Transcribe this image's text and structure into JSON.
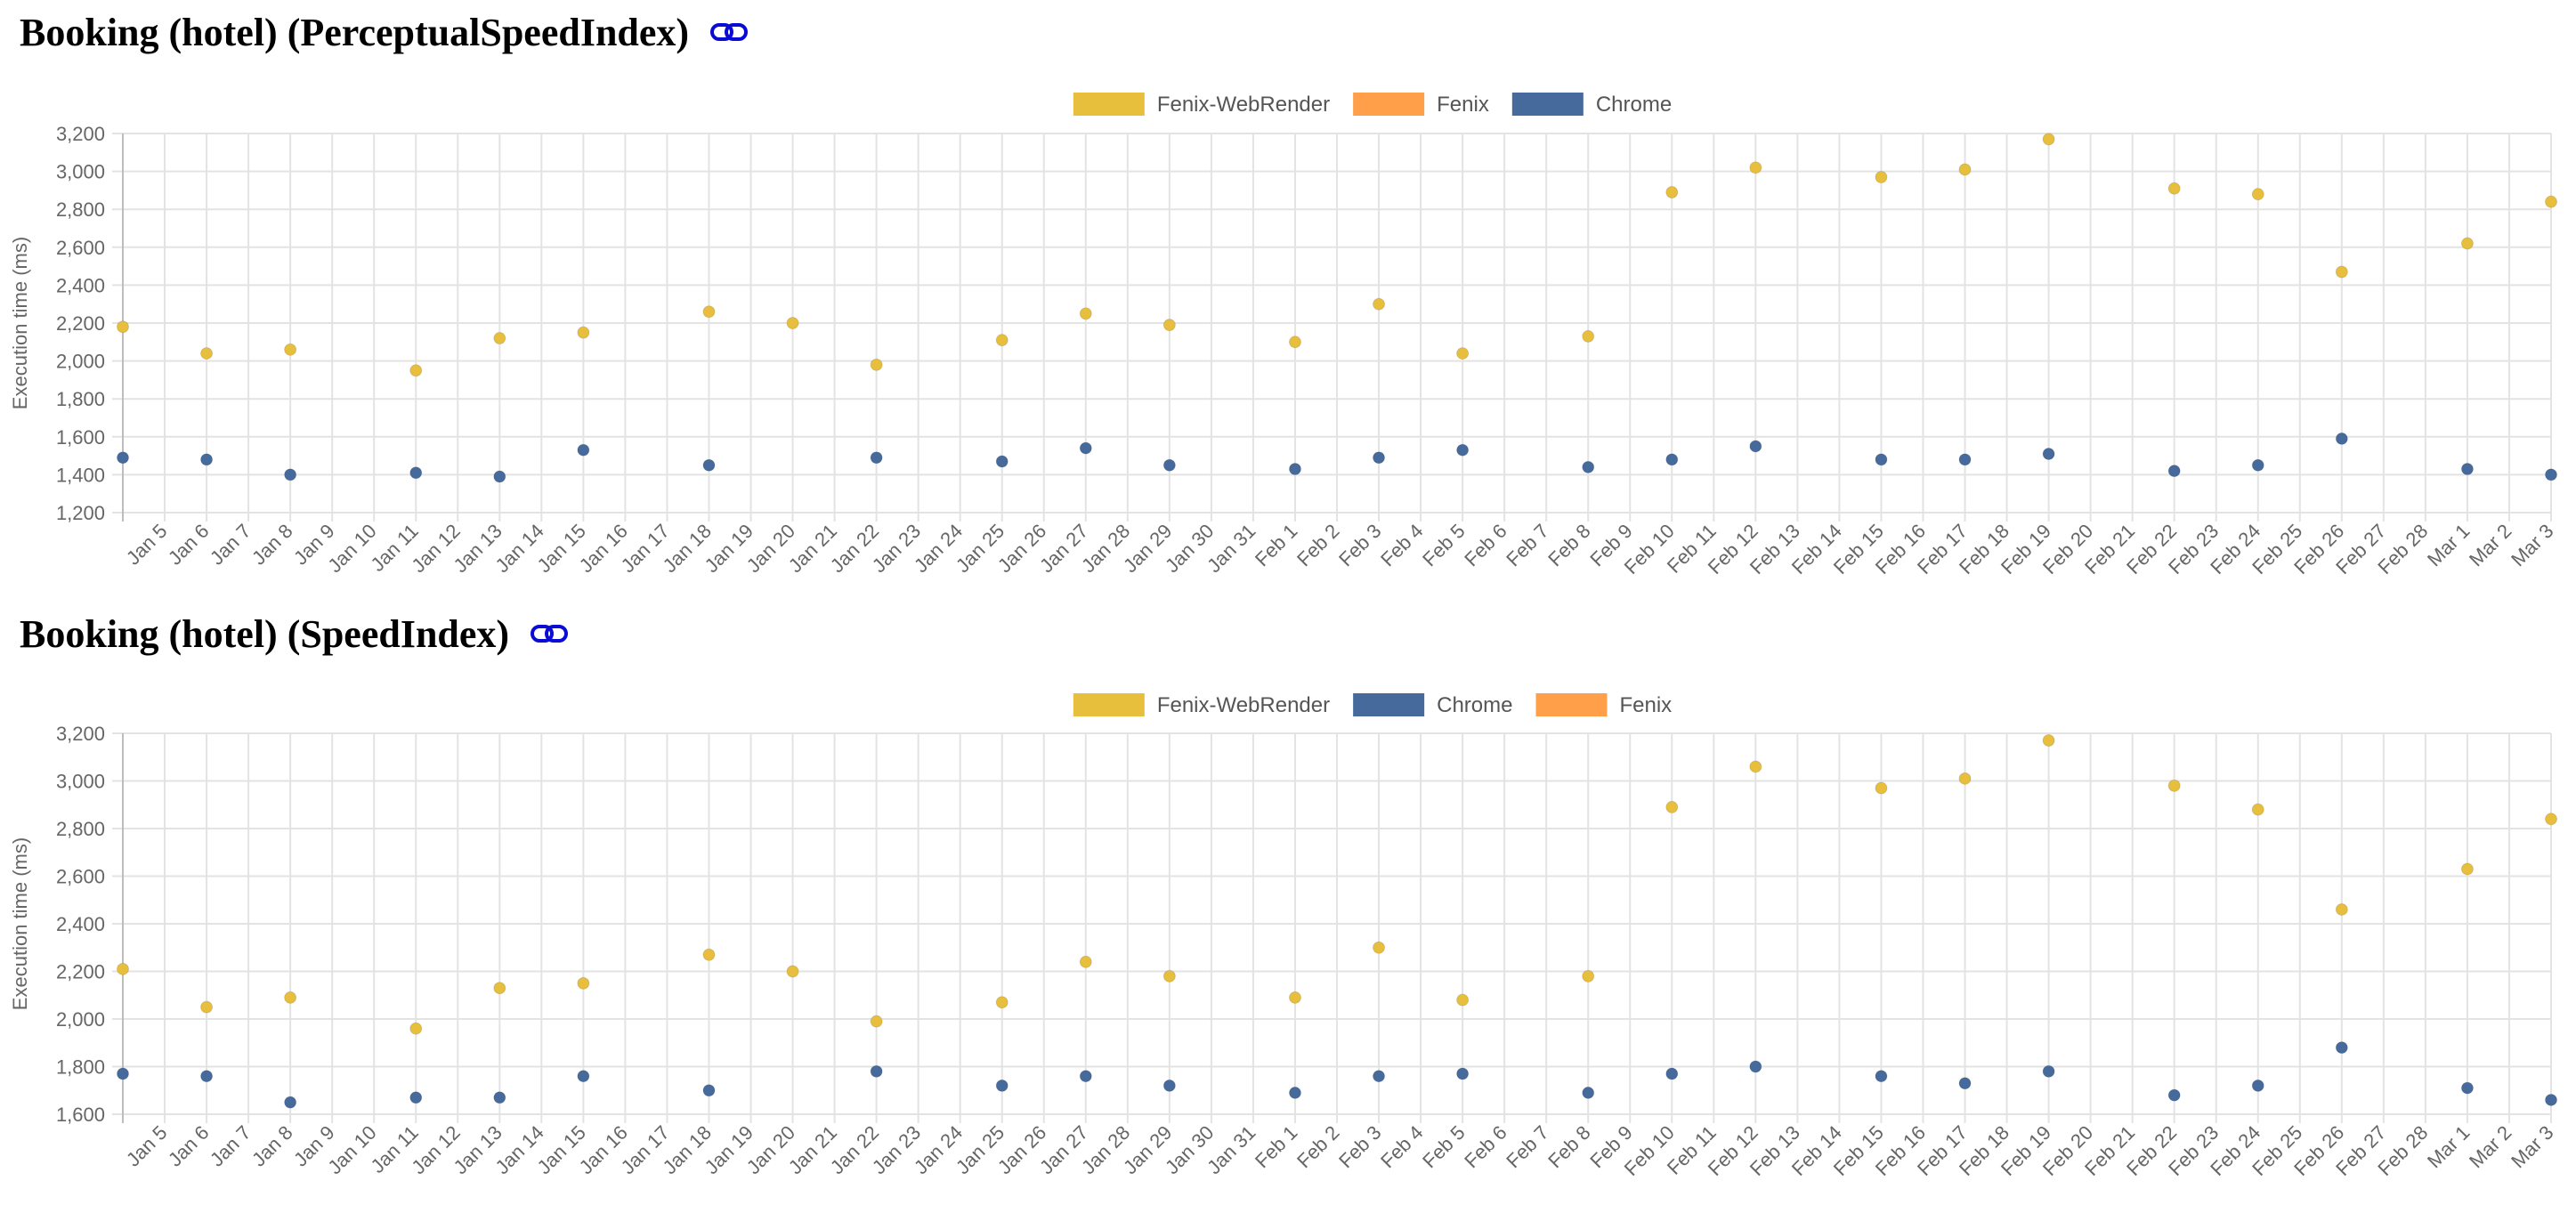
{
  "charts": [
    {
      "title": "Booking (hotel) (PerceptualSpeedIndex)",
      "link_icon": "link-icon"
    },
    {
      "title": "Booking (hotel) (SpeedIndex)",
      "link_icon": "link-icon"
    }
  ],
  "chart_data": [
    {
      "type": "scatter",
      "title": "Booking (hotel) (PerceptualSpeedIndex)",
      "ylabel": "Execution time (ms)",
      "xlabel": "",
      "ylim": [
        1200,
        3200
      ],
      "yticks": [
        1200,
        1400,
        1600,
        1800,
        2000,
        2200,
        2400,
        2600,
        2800,
        3000,
        3200
      ],
      "xlim": [
        "2023-01-04",
        "2023-03-03"
      ],
      "xtick_labels": [
        "Jan 5",
        "Jan 6",
        "Jan 7",
        "Jan 8",
        "Jan 9",
        "Jan 10",
        "Jan 11",
        "Jan 12",
        "Jan 13",
        "Jan 14",
        "Jan 15",
        "Jan 16",
        "Jan 17",
        "Jan 18",
        "Jan 19",
        "Jan 20",
        "Jan 21",
        "Jan 22",
        "Jan 23",
        "Jan 24",
        "Jan 25",
        "Jan 26",
        "Jan 27",
        "Jan 28",
        "Jan 29",
        "Jan 30",
        "Jan 31",
        "Feb 1",
        "Feb 2",
        "Feb 3",
        "Feb 4",
        "Feb 5",
        "Feb 6",
        "Feb 7",
        "Feb 8",
        "Feb 9",
        "Feb 10",
        "Feb 11",
        "Feb 12",
        "Feb 13",
        "Feb 14",
        "Feb 15",
        "Feb 16",
        "Feb 17",
        "Feb 18",
        "Feb 19",
        "Feb 20",
        "Feb 21",
        "Feb 22",
        "Feb 23",
        "Feb 24",
        "Feb 25",
        "Feb 26",
        "Feb 27",
        "Feb 28",
        "Mar 1",
        "Mar 2",
        "Mar 3"
      ],
      "legend_position": "top-center",
      "grid": true,
      "series": [
        {
          "name": "Fenix-WebRender",
          "color": "#e8be3d",
          "points": [
            {
              "x": "2023-01-04",
              "y": 2180
            },
            {
              "x": "2023-01-06",
              "y": 2040
            },
            {
              "x": "2023-01-08",
              "y": 2060
            },
            {
              "x": "2023-01-11",
              "y": 1950
            },
            {
              "x": "2023-01-13",
              "y": 2120
            },
            {
              "x": "2023-01-15",
              "y": 2150
            },
            {
              "x": "2023-01-18",
              "y": 2260
            },
            {
              "x": "2023-01-20",
              "y": 2200
            },
            {
              "x": "2023-01-22",
              "y": 1980
            },
            {
              "x": "2023-01-25",
              "y": 2110
            },
            {
              "x": "2023-01-27",
              "y": 2250
            },
            {
              "x": "2023-01-29",
              "y": 2190
            },
            {
              "x": "2023-02-01",
              "y": 2100
            },
            {
              "x": "2023-02-03",
              "y": 2300
            },
            {
              "x": "2023-02-05",
              "y": 2040
            },
            {
              "x": "2023-02-08",
              "y": 2130
            },
            {
              "x": "2023-02-10",
              "y": 2890
            },
            {
              "x": "2023-02-12",
              "y": 3020
            },
            {
              "x": "2023-02-15",
              "y": 2970
            },
            {
              "x": "2023-02-17",
              "y": 3010
            },
            {
              "x": "2023-02-19",
              "y": 3170
            },
            {
              "x": "2023-02-22",
              "y": 2910
            },
            {
              "x": "2023-02-24",
              "y": 2880
            },
            {
              "x": "2023-02-26",
              "y": 2470
            },
            {
              "x": "2023-03-01",
              "y": 2620
            },
            {
              "x": "2023-03-03",
              "y": 2840
            }
          ]
        },
        {
          "name": "Fenix",
          "color": "#ff9f4a",
          "points": []
        },
        {
          "name": "Chrome",
          "color": "#456a9b",
          "points": [
            {
              "x": "2023-01-04",
              "y": 1490
            },
            {
              "x": "2023-01-06",
              "y": 1480
            },
            {
              "x": "2023-01-08",
              "y": 1400
            },
            {
              "x": "2023-01-11",
              "y": 1410
            },
            {
              "x": "2023-01-13",
              "y": 1390
            },
            {
              "x": "2023-01-15",
              "y": 1530
            },
            {
              "x": "2023-01-18",
              "y": 1450
            },
            {
              "x": "2023-01-22",
              "y": 1490
            },
            {
              "x": "2023-01-25",
              "y": 1470
            },
            {
              "x": "2023-01-27",
              "y": 1540
            },
            {
              "x": "2023-01-29",
              "y": 1450
            },
            {
              "x": "2023-02-01",
              "y": 1430
            },
            {
              "x": "2023-02-03",
              "y": 1490
            },
            {
              "x": "2023-02-05",
              "y": 1530
            },
            {
              "x": "2023-02-08",
              "y": 1440
            },
            {
              "x": "2023-02-10",
              "y": 1480
            },
            {
              "x": "2023-02-12",
              "y": 1550
            },
            {
              "x": "2023-02-15",
              "y": 1480
            },
            {
              "x": "2023-02-17",
              "y": 1480
            },
            {
              "x": "2023-02-19",
              "y": 1510
            },
            {
              "x": "2023-02-22",
              "y": 1420
            },
            {
              "x": "2023-02-24",
              "y": 1450
            },
            {
              "x": "2023-02-26",
              "y": 1590
            },
            {
              "x": "2023-03-01",
              "y": 1430
            },
            {
              "x": "2023-03-03",
              "y": 1400
            }
          ]
        }
      ]
    },
    {
      "type": "scatter",
      "title": "Booking (hotel) (SpeedIndex)",
      "ylabel": "Execution time (ms)",
      "xlabel": "",
      "ylim": [
        1600,
        3200
      ],
      "yticks": [
        1600,
        1800,
        2000,
        2200,
        2400,
        2600,
        2800,
        3000,
        3200
      ],
      "xlim": [
        "2023-01-04",
        "2023-03-03"
      ],
      "xtick_labels": [
        "Jan 5",
        "Jan 6",
        "Jan 7",
        "Jan 8",
        "Jan 9",
        "Jan 10",
        "Jan 11",
        "Jan 12",
        "Jan 13",
        "Jan 14",
        "Jan 15",
        "Jan 16",
        "Jan 17",
        "Jan 18",
        "Jan 19",
        "Jan 20",
        "Jan 21",
        "Jan 22",
        "Jan 23",
        "Jan 24",
        "Jan 25",
        "Jan 26",
        "Jan 27",
        "Jan 28",
        "Jan 29",
        "Jan 30",
        "Jan 31",
        "Feb 1",
        "Feb 2",
        "Feb 3",
        "Feb 4",
        "Feb 5",
        "Feb 6",
        "Feb 7",
        "Feb 8",
        "Feb 9",
        "Feb 10",
        "Feb 11",
        "Feb 12",
        "Feb 13",
        "Feb 14",
        "Feb 15",
        "Feb 16",
        "Feb 17",
        "Feb 18",
        "Feb 19",
        "Feb 20",
        "Feb 21",
        "Feb 22",
        "Feb 23",
        "Feb 24",
        "Feb 25",
        "Feb 26",
        "Feb 27",
        "Feb 28",
        "Mar 1",
        "Mar 2",
        "Mar 3"
      ],
      "legend_position": "top-center",
      "grid": true,
      "series": [
        {
          "name": "Fenix-WebRender",
          "color": "#e8be3d",
          "points": [
            {
              "x": "2023-01-04",
              "y": 2210
            },
            {
              "x": "2023-01-06",
              "y": 2050
            },
            {
              "x": "2023-01-08",
              "y": 2090
            },
            {
              "x": "2023-01-11",
              "y": 1960
            },
            {
              "x": "2023-01-13",
              "y": 2130
            },
            {
              "x": "2023-01-15",
              "y": 2150
            },
            {
              "x": "2023-01-18",
              "y": 2270
            },
            {
              "x": "2023-01-20",
              "y": 2200
            },
            {
              "x": "2023-01-22",
              "y": 1990
            },
            {
              "x": "2023-01-25",
              "y": 2070
            },
            {
              "x": "2023-01-27",
              "y": 2240
            },
            {
              "x": "2023-01-29",
              "y": 2180
            },
            {
              "x": "2023-02-01",
              "y": 2090
            },
            {
              "x": "2023-02-03",
              "y": 2300
            },
            {
              "x": "2023-02-05",
              "y": 2080
            },
            {
              "x": "2023-02-08",
              "y": 2180
            },
            {
              "x": "2023-02-10",
              "y": 2890
            },
            {
              "x": "2023-02-12",
              "y": 3060
            },
            {
              "x": "2023-02-15",
              "y": 2970
            },
            {
              "x": "2023-02-17",
              "y": 3010
            },
            {
              "x": "2023-02-19",
              "y": 3170
            },
            {
              "x": "2023-02-22",
              "y": 2980
            },
            {
              "x": "2023-02-24",
              "y": 2880
            },
            {
              "x": "2023-02-26",
              "y": 2460
            },
            {
              "x": "2023-03-01",
              "y": 2630
            },
            {
              "x": "2023-03-03",
              "y": 2840
            }
          ]
        },
        {
          "name": "Chrome",
          "color": "#456a9b",
          "points": [
            {
              "x": "2023-01-04",
              "y": 1770
            },
            {
              "x": "2023-01-06",
              "y": 1760
            },
            {
              "x": "2023-01-08",
              "y": 1650
            },
            {
              "x": "2023-01-11",
              "y": 1670
            },
            {
              "x": "2023-01-13",
              "y": 1670
            },
            {
              "x": "2023-01-15",
              "y": 1760
            },
            {
              "x": "2023-01-18",
              "y": 1700
            },
            {
              "x": "2023-01-22",
              "y": 1780
            },
            {
              "x": "2023-01-25",
              "y": 1720
            },
            {
              "x": "2023-01-27",
              "y": 1760
            },
            {
              "x": "2023-01-29",
              "y": 1720
            },
            {
              "x": "2023-02-01",
              "y": 1690
            },
            {
              "x": "2023-02-03",
              "y": 1760
            },
            {
              "x": "2023-02-05",
              "y": 1770
            },
            {
              "x": "2023-02-08",
              "y": 1690
            },
            {
              "x": "2023-02-10",
              "y": 1770
            },
            {
              "x": "2023-02-12",
              "y": 1800
            },
            {
              "x": "2023-02-15",
              "y": 1760
            },
            {
              "x": "2023-02-17",
              "y": 1730
            },
            {
              "x": "2023-02-19",
              "y": 1780
            },
            {
              "x": "2023-02-22",
              "y": 1680
            },
            {
              "x": "2023-02-24",
              "y": 1720
            },
            {
              "x": "2023-02-26",
              "y": 1880
            },
            {
              "x": "2023-03-01",
              "y": 1710
            },
            {
              "x": "2023-03-03",
              "y": 1660
            }
          ]
        },
        {
          "name": "Fenix",
          "color": "#ff9f4a",
          "points": []
        }
      ]
    }
  ]
}
